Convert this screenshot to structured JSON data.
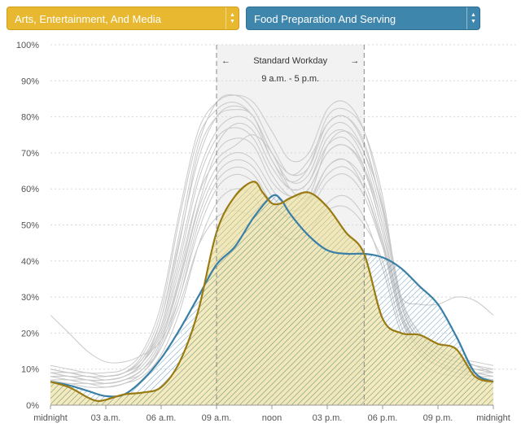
{
  "selectors": {
    "left": {
      "label": "Arts, Entertainment, And Media",
      "color": "#e8b830"
    },
    "right": {
      "label": "Food Preparation And Serving",
      "color": "#3f86ad"
    }
  },
  "chart_data": {
    "type": "area",
    "x_ticks": [
      "midnight",
      "03 a.m.",
      "06 a.m.",
      "09 a.m.",
      "noon",
      "03 p.m.",
      "06 p.m.",
      "09 p.m.",
      "midnight"
    ],
    "y_ticks": [
      "0%",
      "10%",
      "20%",
      "30%",
      "40%",
      "50%",
      "60%",
      "70%",
      "80%",
      "90%",
      "100%"
    ],
    "ylim": [
      0,
      100
    ],
    "xlim_hours": [
      0,
      24
    ],
    "grid": true,
    "band": {
      "start_hour": 9,
      "end_hour": 17,
      "title": "Standard Workday",
      "subtitle": "9 a.m. - 5 p.m.",
      "left_arrow": "←",
      "right_arrow": "→"
    },
    "series": [
      {
        "color": "#9a7b12",
        "fill": "#f1e2a8",
        "x": [
          0,
          1,
          2,
          2.5,
          3,
          4,
          5,
          6,
          7,
          8,
          9,
          10,
          11,
          11.5,
          12,
          12.5,
          13,
          14,
          15,
          16,
          17,
          18,
          19,
          20,
          21,
          22,
          23,
          24
        ],
        "y": [
          6.5,
          5,
          2.2,
          1.2,
          1.5,
          3,
          3.5,
          5,
          12,
          26,
          48,
          58,
          62,
          59,
          56,
          56,
          57.5,
          59,
          55,
          48,
          42,
          24,
          20,
          19.5,
          17,
          15.5,
          8,
          6.5
        ]
      },
      {
        "color": "#3a7fa6",
        "fill": "#cfe3ee",
        "x": [
          0,
          1,
          2,
          3,
          4,
          5,
          6,
          7,
          8,
          9,
          10,
          11,
          12,
          12.5,
          13,
          14,
          15,
          16,
          17,
          18,
          19,
          20,
          21,
          22,
          23,
          24
        ],
        "y": [
          6.5,
          5.5,
          4,
          2.5,
          3,
          7,
          13,
          21,
          30,
          39,
          44,
          52,
          58,
          57,
          53,
          47,
          43,
          42,
          42,
          41,
          38,
          33,
          28,
          19,
          9,
          6.5
        ]
      }
    ],
    "background_series": [
      [
        9,
        9,
        8,
        8,
        9,
        12,
        20,
        38,
        58,
        68,
        72,
        75,
        70,
        60,
        58,
        72,
        76,
        70,
        55,
        30,
        20,
        15,
        13,
        11,
        9
      ],
      [
        10,
        9,
        9,
        8,
        9,
        13,
        22,
        45,
        70,
        80,
        82,
        80,
        68,
        62,
        66,
        80,
        82,
        76,
        58,
        28,
        18,
        14,
        12,
        10,
        9
      ],
      [
        8,
        7,
        6,
        6,
        7,
        10,
        18,
        35,
        55,
        70,
        74,
        72,
        62,
        58,
        60,
        70,
        72,
        66,
        50,
        26,
        17,
        13,
        11,
        9,
        8
      ],
      [
        9,
        8,
        8,
        7,
        8,
        12,
        24,
        48,
        72,
        84,
        86,
        82,
        72,
        64,
        68,
        78,
        80,
        72,
        54,
        30,
        20,
        16,
        13,
        11,
        9
      ],
      [
        7,
        6,
        6,
        5,
        6,
        9,
        16,
        30,
        50,
        62,
        66,
        64,
        56,
        52,
        56,
        66,
        68,
        60,
        44,
        24,
        15,
        11,
        9,
        8,
        7
      ],
      [
        10,
        9,
        8,
        8,
        9,
        14,
        26,
        52,
        74,
        82,
        84,
        80,
        70,
        62,
        64,
        76,
        78,
        70,
        52,
        28,
        18,
        14,
        12,
        10,
        10
      ],
      [
        8,
        8,
        7,
        7,
        8,
        11,
        19,
        36,
        58,
        72,
        78,
        76,
        66,
        60,
        62,
        74,
        76,
        68,
        50,
        26,
        16,
        12,
        10,
        9,
        8
      ],
      [
        9,
        8,
        7,
        7,
        8,
        12,
        22,
        42,
        64,
        76,
        80,
        78,
        68,
        60,
        62,
        72,
        74,
        66,
        48,
        25,
        16,
        12,
        10,
        9,
        9
      ],
      [
        25,
        20,
        15,
        12,
        12,
        14,
        18,
        30,
        48,
        60,
        64,
        62,
        56,
        52,
        54,
        62,
        64,
        58,
        44,
        30,
        28,
        28,
        30,
        29,
        25
      ],
      [
        6,
        6,
        5,
        5,
        6,
        8,
        14,
        26,
        44,
        56,
        60,
        58,
        50,
        46,
        48,
        56,
        58,
        52,
        38,
        20,
        12,
        9,
        8,
        7,
        6
      ],
      [
        11,
        10,
        9,
        9,
        10,
        15,
        28,
        54,
        76,
        84,
        86,
        84,
        76,
        68,
        70,
        82,
        84,
        76,
        56,
        30,
        20,
        15,
        13,
        12,
        11
      ],
      [
        8,
        7,
        7,
        6,
        7,
        10,
        18,
        34,
        54,
        66,
        70,
        68,
        60,
        54,
        56,
        64,
        66,
        60,
        45,
        24,
        15,
        11,
        10,
        9,
        8
      ],
      [
        9,
        9,
        8,
        8,
        9,
        12,
        21,
        40,
        62,
        74,
        77,
        74,
        64,
        58,
        60,
        70,
        72,
        65,
        48,
        26,
        17,
        13,
        11,
        10,
        9
      ],
      [
        7,
        7,
        6,
        6,
        7,
        9,
        17,
        32,
        52,
        64,
        68,
        66,
        58,
        54,
        57,
        66,
        68,
        62,
        46,
        24,
        16,
        12,
        10,
        8,
        7
      ],
      [
        10,
        9,
        8,
        8,
        9,
        13,
        24,
        46,
        68,
        80,
        83,
        80,
        70,
        64,
        66,
        78,
        80,
        73,
        54,
        29,
        19,
        14,
        12,
        11,
        10
      ],
      [
        8,
        8,
        7,
        6,
        7,
        10,
        16,
        28,
        44,
        52,
        54,
        52,
        48,
        46,
        48,
        54,
        55,
        50,
        40,
        22,
        14,
        11,
        9,
        8,
        8
      ]
    ]
  }
}
